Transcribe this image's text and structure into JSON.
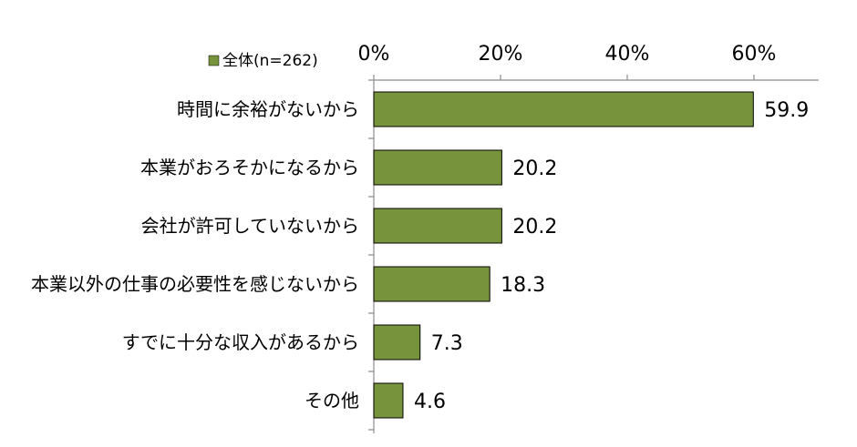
{
  "chart_data": {
    "type": "bar",
    "orientation": "horizontal",
    "categories": [
      "時間に余裕がないから",
      "本業がおろそかになるから",
      "会社が許可していないから",
      "本業以外の仕事の必要性を感じないから",
      "すでに十分な収入があるから",
      "その他"
    ],
    "series": [
      {
        "name": "全体(n=262)",
        "values": [
          59.9,
          20.2,
          20.2,
          18.3,
          7.3,
          4.6
        ],
        "color": "#77933c"
      }
    ],
    "xlim": [
      0,
      70
    ],
    "xticks": [
      0,
      20,
      40,
      60
    ],
    "xtick_labels": [
      "0%",
      "20%",
      "40%",
      "60%"
    ],
    "axis_position": "top",
    "legend_position": "top-left",
    "grid": false,
    "value_labels": [
      "59.9",
      "20.2",
      "20.2",
      "18.3",
      "7.3",
      "4.6"
    ]
  }
}
